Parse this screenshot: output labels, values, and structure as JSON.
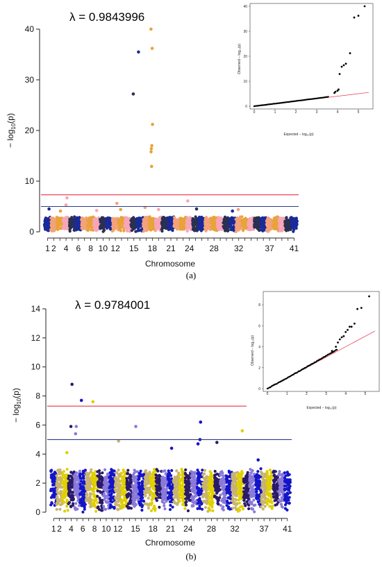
{
  "chart_data": [
    {
      "type": "scatter",
      "panel_label": "(a)",
      "annotation": "λ = 0.9843996",
      "xlabel": "Chromosome",
      "ylabel_prefix": "− log",
      "ylabel_sub": "10",
      "ylabel_suffix": "(p)",
      "ylim": [
        0,
        40
      ],
      "yticks": [
        "0",
        "10",
        "20",
        "30",
        "40"
      ],
      "xtick_labels": [
        "1",
        "2",
        "4",
        "6",
        "8",
        "10",
        "12",
        "15",
        "18",
        "21",
        "24",
        "28",
        "32",
        "37",
        "41"
      ],
      "xtick_chromosomes": [
        1,
        2,
        4,
        6,
        8,
        10,
        12,
        15,
        18,
        21,
        24,
        28,
        32,
        37,
        41
      ],
      "n_chromosomes": 41,
      "thresholds": [
        {
          "value": 7.3,
          "color": "#e8304a"
        },
        {
          "value": 5.0,
          "color": "#2b3a8c"
        }
      ],
      "point_colors": [
        "#1a2a9a",
        "#f4a27a",
        "#e8a33a",
        "#f7a6b8",
        "#2a3050"
      ],
      "background_max": 3.0,
      "peaks": [
        {
          "chromosome": 4,
          "value": 5.3
        },
        {
          "chromosome": 4,
          "value": 6.7
        },
        {
          "chromosome": 1,
          "value": 4.5
        },
        {
          "chromosome": 3,
          "value": 4.1
        },
        {
          "chromosome": 9,
          "value": 4.2
        },
        {
          "chromosome": 12,
          "value": 5.6
        },
        {
          "chromosome": 13,
          "value": 4.4
        },
        {
          "chromosome": 15,
          "value": 27.2
        },
        {
          "chromosome": 16,
          "value": 35.5
        },
        {
          "chromosome": 17,
          "value": 4.8
        },
        {
          "chromosome": 18,
          "value": 40.0
        },
        {
          "chromosome": 18,
          "value": 36.2
        },
        {
          "chromosome": 18,
          "value": 21.2
        },
        {
          "chromosome": 18,
          "value": 17.0
        },
        {
          "chromosome": 18,
          "value": 16.4
        },
        {
          "chromosome": 18,
          "value": 15.8
        },
        {
          "chromosome": 18,
          "value": 12.9
        },
        {
          "chromosome": 19,
          "value": 4.4
        },
        {
          "chromosome": 24,
          "value": 6.1
        },
        {
          "chromosome": 25,
          "value": 4.5
        },
        {
          "chromosome": 32,
          "value": 4.4
        },
        {
          "chromosome": 31,
          "value": 4.1
        }
      ],
      "qq": {
        "xlabel": "Expected − log₁₀(p)",
        "ylabel": "Observed − log₁₀(p)",
        "xlim": [
          0,
          5.5
        ],
        "ylim": [
          0,
          40
        ],
        "xticks": [
          "0",
          "1",
          "2",
          "3",
          "4",
          "5"
        ],
        "yticks": [
          "0",
          "10",
          "20",
          "30",
          "40"
        ],
        "tail": [
          {
            "x": 3.85,
            "y": 5.3
          },
          {
            "x": 3.9,
            "y": 5.8
          },
          {
            "x": 4.0,
            "y": 6.2
          },
          {
            "x": 4.05,
            "y": 6.7
          },
          {
            "x": 4.1,
            "y": 12.9
          },
          {
            "x": 4.2,
            "y": 15.8
          },
          {
            "x": 4.3,
            "y": 16.4
          },
          {
            "x": 4.4,
            "y": 17.0
          },
          {
            "x": 4.6,
            "y": 21.2
          },
          {
            "x": 4.8,
            "y": 35.5
          },
          {
            "x": 5.0,
            "y": 36.2
          },
          {
            "x": 5.3,
            "y": 40.0
          }
        ]
      }
    },
    {
      "type": "scatter",
      "panel_label": "(b)",
      "annotation": "λ = 0.9784001",
      "xlabel": "Chromosome",
      "ylabel_prefix": "− log",
      "ylabel_sub": "10",
      "ylabel_suffix": "(p)",
      "ylim": [
        0,
        14
      ],
      "yticks": [
        "0",
        "2",
        "4",
        "6",
        "8",
        "10",
        "12",
        "14"
      ],
      "xtick_labels": [
        "1",
        "2",
        "4",
        "6",
        "8",
        "10",
        "12",
        "15",
        "18",
        "21",
        "24",
        "28",
        "32",
        "37",
        "41"
      ],
      "xtick_chromosomes": [
        1,
        2,
        4,
        6,
        8,
        10,
        12,
        15,
        18,
        21,
        24,
        28,
        32,
        37,
        41
      ],
      "n_chromosomes": 41,
      "thresholds": [
        {
          "value": 7.3,
          "color": "#e8304a"
        },
        {
          "value": 5.0,
          "color": "#2b3a8c"
        }
      ],
      "point_colors": [
        "#1414c8",
        "#c8b46e",
        "#e0d000",
        "#2a1a6a",
        "#8a7ad8"
      ],
      "background_max": 3.0,
      "peaks": [
        {
          "chromosome": 4,
          "value": 8.8
        },
        {
          "chromosome": 4,
          "value": 5.9
        },
        {
          "chromosome": 5,
          "value": 5.9
        },
        {
          "chromosome": 5,
          "value": 5.4
        },
        {
          "chromosome": 6,
          "value": 7.7
        },
        {
          "chromosome": 8,
          "value": 7.6
        },
        {
          "chromosome": 12,
          "value": 4.9
        },
        {
          "chromosome": 15,
          "value": 5.9
        },
        {
          "chromosome": 21,
          "value": 4.4
        },
        {
          "chromosome": 26,
          "value": 6.2
        },
        {
          "chromosome": 26,
          "value": 5.0
        },
        {
          "chromosome": 26,
          "value": 4.7
        },
        {
          "chromosome": 29,
          "value": 4.8
        },
        {
          "chromosome": 33,
          "value": 5.6
        },
        {
          "chromosome": 3,
          "value": 4.1
        },
        {
          "chromosome": 36,
          "value": 3.6
        }
      ],
      "qq": {
        "xlabel": "Expected − log₁₀(p)",
        "ylabel": "Observed − log₁₀(p)",
        "xlim": [
          0,
          5.5
        ],
        "ylim": [
          0,
          9
        ],
        "xticks": [
          "0",
          "1",
          "2",
          "3",
          "4",
          "5"
        ],
        "yticks": [
          "0",
          "2",
          "4",
          "6",
          "8"
        ],
        "tail": [
          {
            "x": 3.3,
            "y": 3.6
          },
          {
            "x": 3.5,
            "y": 4.0
          },
          {
            "x": 3.6,
            "y": 4.4
          },
          {
            "x": 3.7,
            "y": 4.7
          },
          {
            "x": 3.8,
            "y": 4.9
          },
          {
            "x": 3.9,
            "y": 5.0
          },
          {
            "x": 4.0,
            "y": 5.4
          },
          {
            "x": 4.1,
            "y": 5.6
          },
          {
            "x": 4.2,
            "y": 5.9
          },
          {
            "x": 4.3,
            "y": 5.9
          },
          {
            "x": 4.45,
            "y": 6.2
          },
          {
            "x": 4.6,
            "y": 7.6
          },
          {
            "x": 4.8,
            "y": 7.7
          },
          {
            "x": 5.2,
            "y": 8.8
          }
        ]
      }
    }
  ]
}
